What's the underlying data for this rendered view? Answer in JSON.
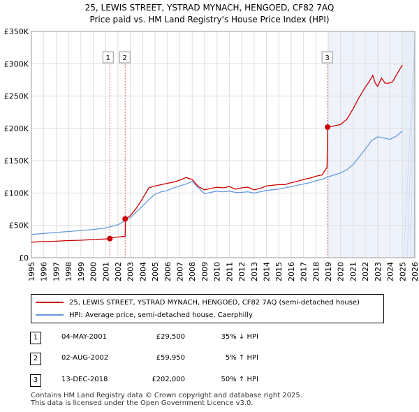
{
  "header": {
    "title_line1": "25, LEWIS STREET, YSTRAD MYNACH, HENGOED, CF82 7AQ",
    "title_line2": "Price paid vs. HM Land Registry's House Price Index (HPI)"
  },
  "colors": {
    "property_line": "#cc0000",
    "hpi_line": "#6699dd",
    "grid": "#dddddd",
    "future_shade": "#e8eef8",
    "marker_line": "#dd6666"
  },
  "chart_data": {
    "type": "line",
    "title": "Price paid vs. HM Land Registry's House Price Index (HPI)",
    "xlim": [
      1995,
      2026
    ],
    "ylim": [
      0,
      350000
    ],
    "x_ticks": [
      "1995",
      "1996",
      "1997",
      "1998",
      "1999",
      "2000",
      "2001",
      "2002",
      "2003",
      "2004",
      "2005",
      "2006",
      "2007",
      "2008",
      "2009",
      "2010",
      "2011",
      "2012",
      "2013",
      "2014",
      "2015",
      "2016",
      "2017",
      "2018",
      "2019",
      "2020",
      "2021",
      "2022",
      "2023",
      "2024",
      "2025",
      "2026"
    ],
    "y_ticks": [
      {
        "value": 0,
        "label": "£0"
      },
      {
        "value": 50000,
        "label": "£50K"
      },
      {
        "value": 100000,
        "label": "£100K"
      },
      {
        "value": 150000,
        "label": "£150K"
      },
      {
        "value": 200000,
        "label": "£200K"
      },
      {
        "value": 250000,
        "label": "£250K"
      },
      {
        "value": 300000,
        "label": "£300K"
      },
      {
        "value": 350000,
        "label": "£350K"
      }
    ],
    "shaded_future_start": 2025.1,
    "series": [
      {
        "name": "25, LEWIS STREET, YSTRAD MYNACH, HENGOED, CF82 7AQ (semi-detached house)",
        "color": "#cc0000",
        "x": [
          1995.0,
          1996.0,
          1997.0,
          1998.0,
          1999.0,
          2000.0,
          2001.0,
          2001.34,
          2001.6,
          2002.0,
          2002.58,
          2002.6,
          2003.0,
          2003.5,
          2004.0,
          2004.5,
          2005.0,
          2005.5,
          2006.0,
          2006.5,
          2007.0,
          2007.5,
          2008.0,
          2008.5,
          2009.0,
          2009.5,
          2010.0,
          2010.5,
          2011.0,
          2011.5,
          2012.0,
          2012.5,
          2013.0,
          2013.5,
          2014.0,
          2014.5,
          2015.0,
          2015.5,
          2016.0,
          2016.5,
          2017.0,
          2017.5,
          2018.0,
          2018.5,
          2018.9,
          2018.95,
          2019.0,
          2019.5,
          2020.0,
          2020.5,
          2021.0,
          2021.5,
          2022.0,
          2022.3,
          2022.6,
          2022.8,
          2023.0,
          2023.3,
          2023.6,
          2023.9,
          2024.2,
          2024.5,
          2024.8,
          2025.0
        ],
        "y": [
          24000,
          25000,
          25500,
          26500,
          27000,
          28000,
          29000,
          29500,
          31000,
          32000,
          33000,
          59950,
          65000,
          77000,
          92000,
          108000,
          111000,
          113000,
          115000,
          117000,
          120000,
          124000,
          121000,
          110000,
          105000,
          107000,
          109000,
          108000,
          110000,
          106000,
          108000,
          109000,
          105000,
          107000,
          111000,
          112000,
          113000,
          113000,
          116000,
          118000,
          121000,
          123000,
          126000,
          128000,
          140000,
          202000,
          202000,
          204000,
          206000,
          214000,
          230000,
          248000,
          264000,
          272000,
          282000,
          270000,
          265000,
          278000,
          270000,
          270000,
          272000,
          282000,
          292000,
          298000
        ]
      },
      {
        "name": "HPI: Average price, semi-detached house, Caerphilly",
        "color": "#6699dd",
        "x": [
          1995.0,
          1996.0,
          1997.0,
          1998.0,
          1999.0,
          2000.0,
          2001.0,
          2002.0,
          2003.0,
          2004.0,
          2004.5,
          2005.0,
          2005.5,
          2006.0,
          2006.5,
          2007.0,
          2007.5,
          2008.0,
          2008.5,
          2009.0,
          2009.5,
          2010.0,
          2010.5,
          2011.0,
          2011.5,
          2012.0,
          2012.5,
          2013.0,
          2013.5,
          2014.0,
          2014.5,
          2015.0,
          2015.5,
          2016.0,
          2016.5,
          2017.0,
          2017.5,
          2018.0,
          2018.5,
          2019.0,
          2019.5,
          2020.0,
          2020.5,
          2021.0,
          2021.5,
          2022.0,
          2022.5,
          2023.0,
          2023.5,
          2024.0,
          2024.5,
          2025.0
        ],
        "y": [
          36000,
          37500,
          39000,
          40500,
          42000,
          43500,
          46000,
          51000,
          62000,
          80000,
          90000,
          98000,
          102000,
          104000,
          108000,
          111000,
          114000,
          118000,
          108000,
          99000,
          101000,
          103000,
          102000,
          103000,
          101000,
          101000,
          102000,
          100000,
          102000,
          104000,
          105000,
          106000,
          108000,
          110000,
          112000,
          114000,
          116000,
          119000,
          121000,
          125000,
          128000,
          131000,
          136000,
          144000,
          156000,
          168000,
          181000,
          187000,
          185000,
          183000,
          188000,
          196000
        ]
      }
    ],
    "sale_markers": [
      {
        "label": "1",
        "x": 2001.34,
        "price": 29500
      },
      {
        "label": "2",
        "x": 2002.58,
        "price": 59950
      },
      {
        "label": "3",
        "x": 2018.95,
        "price": 202000
      }
    ]
  },
  "legend": {
    "items": [
      {
        "label": "25, LEWIS STREET, YSTRAD MYNACH, HENGOED, CF82 7AQ (semi-detached house)",
        "color": "#cc0000"
      },
      {
        "label": "HPI: Average price, semi-detached house, Caerphilly",
        "color": "#6699dd"
      }
    ]
  },
  "sales": [
    {
      "num": "1",
      "date": "04-MAY-2001",
      "price": "£29,500",
      "hpi": "35% ↓ HPI"
    },
    {
      "num": "2",
      "date": "02-AUG-2002",
      "price": "£59,950",
      "hpi": "5% ↑ HPI"
    },
    {
      "num": "3",
      "date": "13-DEC-2018",
      "price": "£202,000",
      "hpi": "50% ↑ HPI"
    }
  ],
  "footer": {
    "line1": "Contains HM Land Registry data © Crown copyright and database right 2025.",
    "line2": "This data is licensed under the Open Government Licence v3.0."
  }
}
